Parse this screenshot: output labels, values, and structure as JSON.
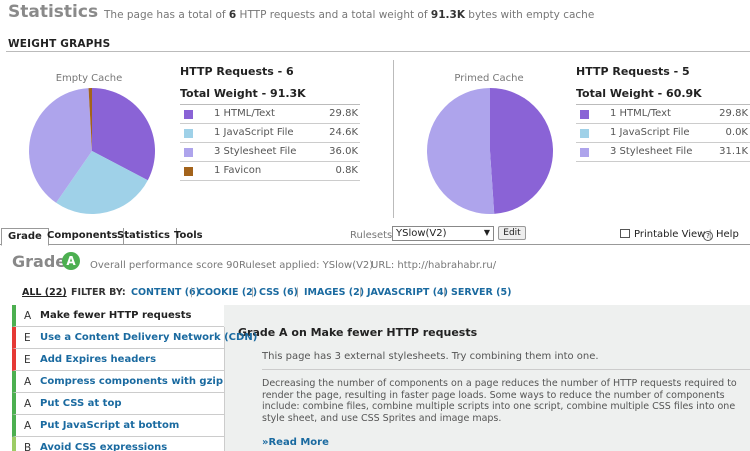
{
  "statistics": {
    "title": "Statistics",
    "summary_pre": "The page has a total of ",
    "requests": "6",
    "summary_mid": " HTTP requests and a total weight of ",
    "weight": "91.3K",
    "summary_post": " bytes with empty cache"
  },
  "weight_graphs_label": "WEIGHT GRAPHS",
  "empty_cache": {
    "caption": "Empty Cache",
    "http_requests": "HTTP Requests - 6",
    "total_weight": "Total Weight - 91.3K",
    "components": [
      {
        "label": "1 HTML/Text",
        "size": "29.8K",
        "color": "#8a63d6"
      },
      {
        "label": "1 JavaScript File",
        "size": "24.6K",
        "color": "#9fd1e8"
      },
      {
        "label": "3 Stylesheet File",
        "size": "36.0K",
        "color": "#aea4ec"
      },
      {
        "label": "1 Favicon",
        "size": "0.8K",
        "color": "#a3631b"
      }
    ]
  },
  "primed_cache": {
    "caption": "Primed Cache",
    "http_requests": "HTTP Requests - 5",
    "total_weight": "Total Weight - 60.9K",
    "components": [
      {
        "label": "1 HTML/Text",
        "size": "29.8K",
        "color": "#8a63d6"
      },
      {
        "label": "1 JavaScript File",
        "size": "0.0K",
        "color": "#9fd1e8"
      },
      {
        "label": "3 Stylesheet File",
        "size": "31.1K",
        "color": "#aea4ec"
      }
    ]
  },
  "tabs": [
    "Grade",
    "Components",
    "Statistics",
    "Tools"
  ],
  "rulesets": {
    "label": "Rulesets",
    "selected": "YSlow(V2)",
    "edit_label": "Edit"
  },
  "printable_label": "Printable View",
  "help_label": "Help",
  "grade": {
    "label": "Grade",
    "value": "A",
    "score_text": "Overall performance score 90",
    "ruleset_text": "Ruleset applied: YSlow(V2)",
    "url_text": "URL: http://habrahabr.ru/"
  },
  "filters": {
    "all": "ALL (22)",
    "by": "FILTER BY:",
    "items": [
      "CONTENT (6)",
      "COOKIE (2)",
      "CSS (6)",
      "IMAGES (2)",
      "JAVASCRIPT (4)",
      "SERVER (5)"
    ]
  },
  "rules": [
    {
      "grade": "A",
      "name": "Make fewer HTTP requests"
    },
    {
      "grade": "E",
      "name": "Use a Content Delivery Network (CDN)"
    },
    {
      "grade": "E",
      "name": "Add Expires headers"
    },
    {
      "grade": "A",
      "name": "Compress components with gzip"
    },
    {
      "grade": "A",
      "name": "Put CSS at top"
    },
    {
      "grade": "A",
      "name": "Put JavaScript at bottom"
    },
    {
      "grade": "B",
      "name": "Avoid CSS expressions"
    }
  ],
  "detail": {
    "title": "Grade A on Make fewer HTTP requests",
    "subtitle": "This page has 3 external stylesheets. Try combining them into one.",
    "description": "Decreasing the number of components on a page reduces the number of HTTP requests required to render the page, resulting in faster page loads. Some ways to reduce the number of components include: combine files, combine multiple scripts into one script, combine multiple CSS files into one style sheet, and use CSS Sprites and image maps.",
    "read_more": "»Read More"
  }
}
